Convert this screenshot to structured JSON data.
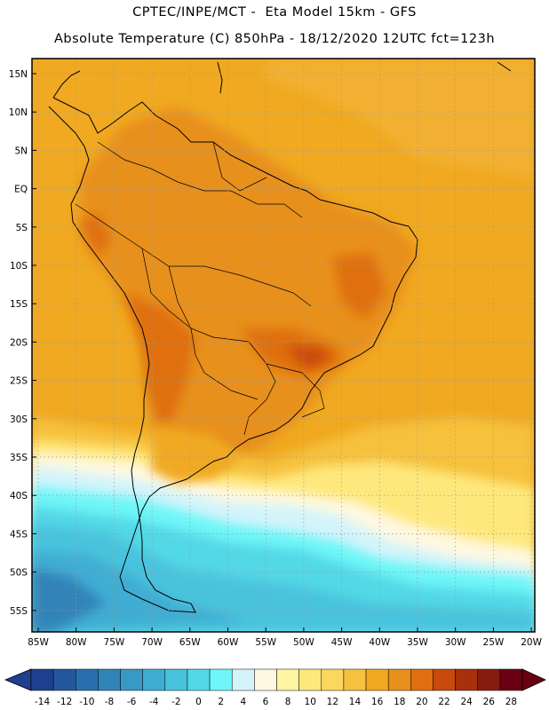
{
  "header": {
    "line1": "CPTEC/INPE/MCT -  Eta Model 15km - GFS",
    "line2": "Absolute Temperature (C) 850hPa - 18/12/2020 12UTC fct=123h"
  },
  "axes": {
    "lat_labels": [
      "15N",
      "10N",
      "5N",
      "EQ",
      "5S",
      "10S",
      "15S",
      "20S",
      "25S",
      "30S",
      "35S",
      "40S",
      "45S",
      "50S",
      "55S"
    ],
    "lon_labels": [
      "85W",
      "80W",
      "75W",
      "70W",
      "65W",
      "60W",
      "55W",
      "50W",
      "45W",
      "40W",
      "35W",
      "30W",
      "25W",
      "20W"
    ]
  },
  "colorbar": {
    "tick_labels": [
      "-14",
      "-12",
      "-10",
      "-8",
      "-6",
      "-4",
      "-2",
      "0",
      "2",
      "4",
      "6",
      "8",
      "10",
      "12",
      "14",
      "16",
      "18",
      "20",
      "22",
      "24",
      "26",
      "28"
    ],
    "colors": [
      "#1f3f8f",
      "#24589e",
      "#2a6fad",
      "#3184b8",
      "#3899c6",
      "#3fadd2",
      "#48c3dd",
      "#52d8e6",
      "#6ef6f8",
      "#d3f4fb",
      "#fff8e1",
      "#fff5a0",
      "#fee87d",
      "#fcd75f",
      "#f6c13e",
      "#f0a920",
      "#e8901c",
      "#df6f10",
      "#c94a0c",
      "#a8300a",
      "#861c10",
      "#6b0012"
    ]
  }
}
